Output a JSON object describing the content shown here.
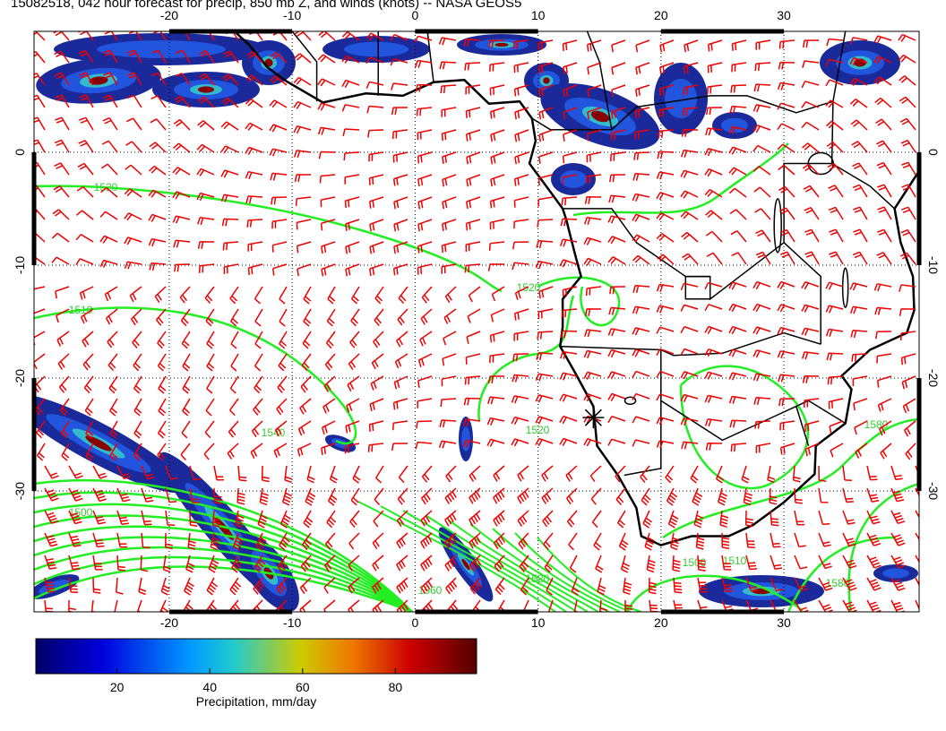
{
  "header": {
    "title": "15082518, 042 hour forecast for precip, 850 mb Z, and winds (knots) -- NASA GEOS5"
  },
  "map": {
    "lon_range": [
      -31,
      41
    ],
    "lat_range": [
      -40.7,
      10.7
    ],
    "lon_ticks": [
      -20,
      -10,
      0,
      10,
      20,
      30
    ],
    "lat_ticks": [
      0,
      -10,
      -20,
      -30
    ],
    "contour_labels": [
      "1520",
      "1520",
      "1510",
      "1540",
      "1520",
      "1580",
      "1500",
      "1500",
      "1510",
      "1520",
      "1560",
      "1580"
    ]
  },
  "colorbar": {
    "range": [
      2.5,
      97.5
    ],
    "ticks": [
      20,
      40,
      60,
      80
    ],
    "label": "Precipitation, mm/day"
  }
}
